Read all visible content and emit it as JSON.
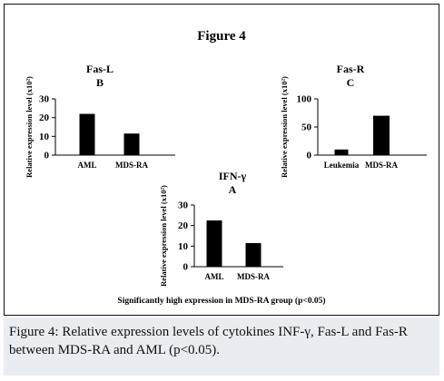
{
  "figure": {
    "title": "Figure 4",
    "footnote": "Significantly high expression in MDS-RA group (p<0.05)"
  },
  "caption": {
    "label": "Figure 4:",
    "text": "Relative expression levels of cytokines INF-γ, Fas-L and Fas-R between MDS-RA and AML (p<0.05)."
  },
  "colors": {
    "bar": "#000000",
    "axis": "#000000",
    "caption_bg": "#e9edf1"
  },
  "chart_data": [
    {
      "type": "bar",
      "title": "Fas-L",
      "subtitle": "B",
      "ylabel": "Relative expression level (x10²)",
      "categories": [
        "AML",
        "MDS-RA"
      ],
      "values": [
        22,
        11.5
      ],
      "yticks": [
        "0",
        "10",
        "20",
        "30"
      ],
      "ylim": [
        0,
        30
      ],
      "grid": false
    },
    {
      "type": "bar",
      "title": "Fas-R",
      "subtitle": "C",
      "ylabel": "Relative expression level (x10²)",
      "categories": [
        "Leukemia",
        "MDS-RA"
      ],
      "values": [
        10,
        70
      ],
      "yticks": [
        "0",
        "50",
        "100"
      ],
      "ylim": [
        0,
        100
      ],
      "grid": false
    },
    {
      "type": "bar",
      "title": "IFN-γ",
      "subtitle": "A",
      "ylabel": "Relative expression level (x10²)",
      "categories": [
        "AML",
        "MDS-RA"
      ],
      "values": [
        22.5,
        11.5
      ],
      "yticks": [
        "0",
        "10",
        "20",
        "30"
      ],
      "ylim": [
        0,
        30
      ],
      "grid": false
    }
  ]
}
